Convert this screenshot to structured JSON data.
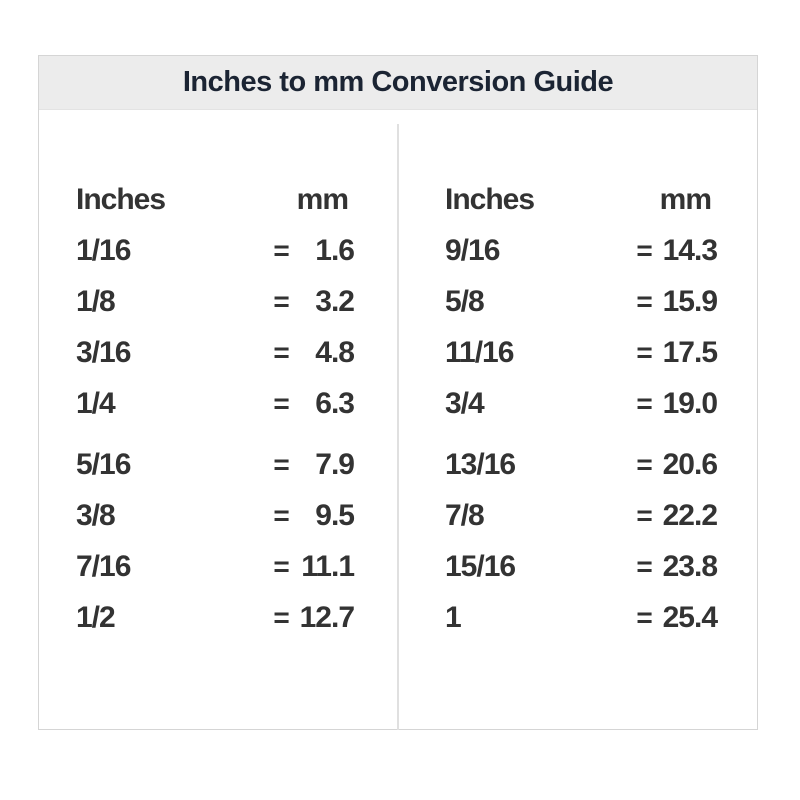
{
  "page": {
    "title": "Inches to mm Conversion Guide"
  },
  "table": {
    "columns": [
      {
        "inches_header": "Inches",
        "mm_header": "mm",
        "rows": [
          {
            "inches": "1/16",
            "equals": "=",
            "mm": "1.6"
          },
          {
            "inches": "1/8",
            "equals": "=",
            "mm": "3.2"
          },
          {
            "inches": "3/16",
            "equals": "=",
            "mm": "4.8"
          },
          {
            "inches": "1/4",
            "equals": "=",
            "mm": "6.3"
          },
          {
            "inches": "5/16",
            "equals": "=",
            "mm": "7.9"
          },
          {
            "inches": "3/8",
            "equals": "=",
            "mm": "9.5"
          },
          {
            "inches": "7/16",
            "equals": "=",
            "mm": "11.1"
          },
          {
            "inches": "1/2",
            "equals": "=",
            "mm": "12.7"
          }
        ]
      },
      {
        "inches_header": "Inches",
        "mm_header": "mm",
        "rows": [
          {
            "inches": "9/16",
            "equals": "=",
            "mm": "14.3"
          },
          {
            "inches": "5/8",
            "equals": "=",
            "mm": "15.9"
          },
          {
            "inches": "11/16",
            "equals": "=",
            "mm": "17.5"
          },
          {
            "inches": "3/4",
            "equals": "=",
            "mm": "19.0"
          },
          {
            "inches": "13/16",
            "equals": "=",
            "mm": "20.6"
          },
          {
            "inches": "7/8",
            "equals": "=",
            "mm": "22.2"
          },
          {
            "inches": "15/16",
            "equals": "=",
            "mm": "23.8"
          },
          {
            "inches": "1",
            "equals": "=",
            "mm": "25.4"
          }
        ]
      }
    ]
  },
  "colors": {
    "header_background": "#ececec",
    "title_text": "#1b2433",
    "body_text": "#333333",
    "border": "#d5d5d5"
  }
}
